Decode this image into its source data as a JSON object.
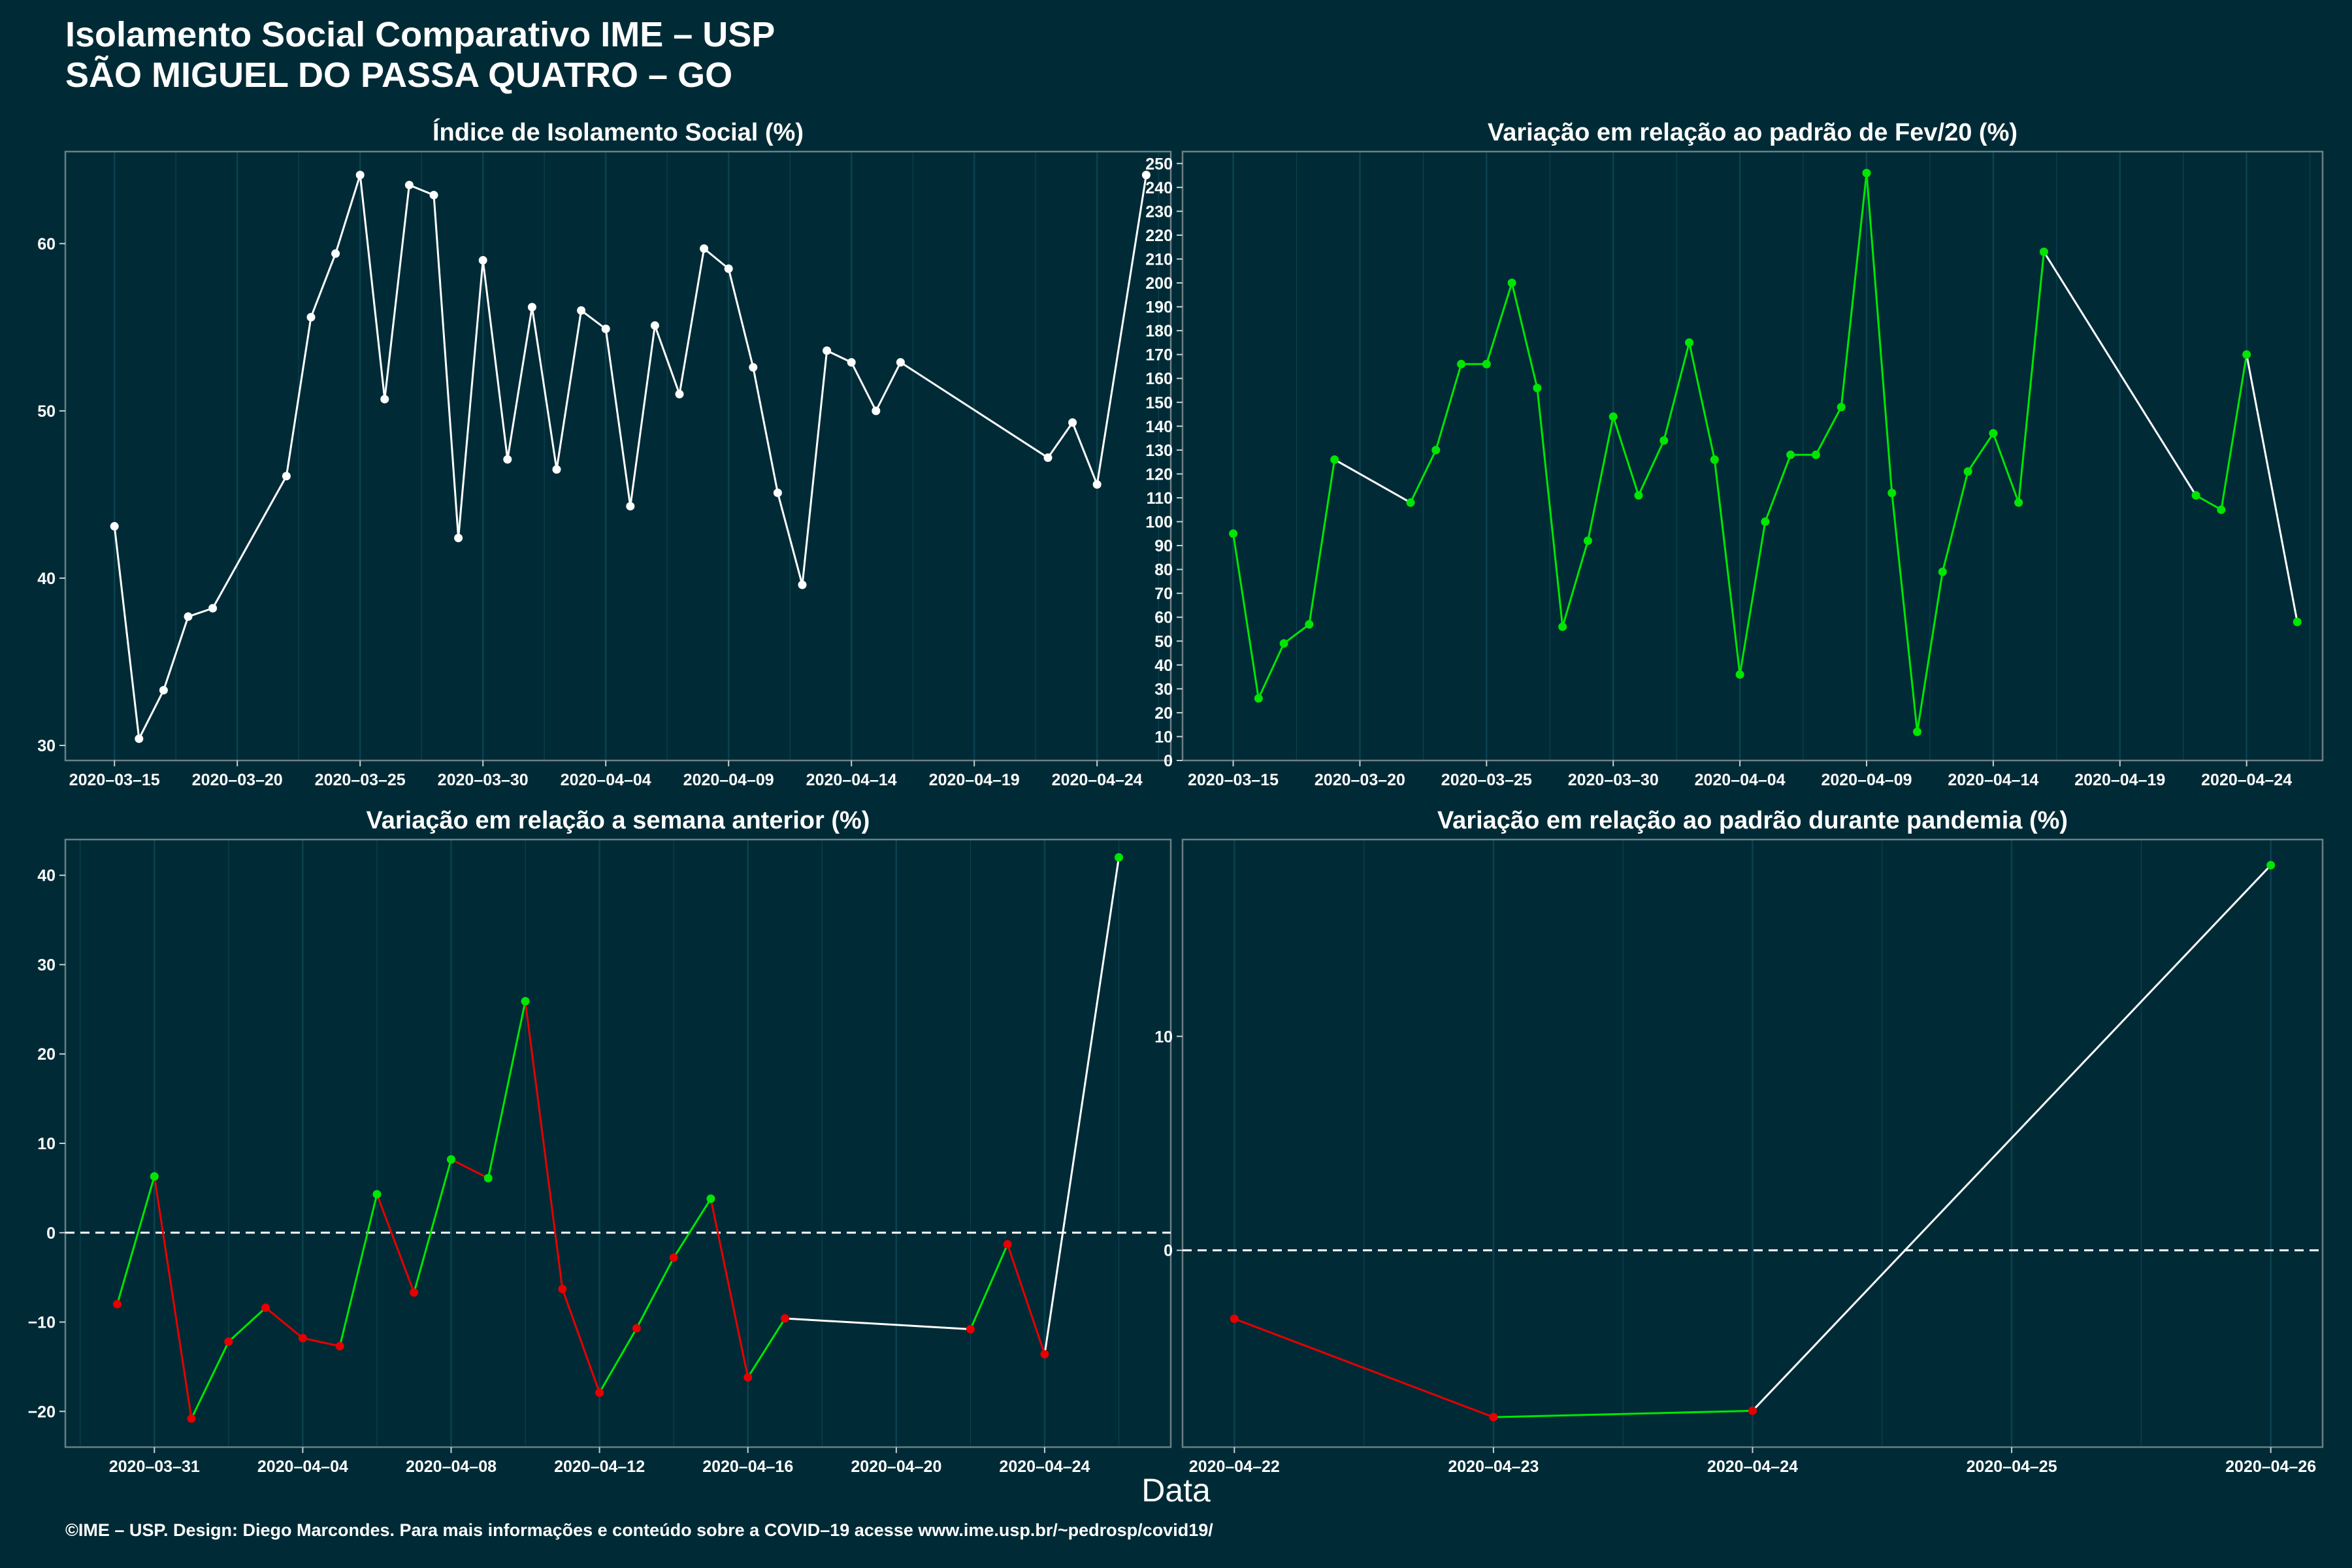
{
  "header": {
    "title": "Isolamento Social Comparativo IME – USP",
    "subtitle": "SÃO MIGUEL DO PASSA QUATRO – GO"
  },
  "footer": {
    "text": "©IME – USP. Design: Diego Marcondes. Para mais informações e conteúdo sobre a COVID–19 acesse www.ime.usp.br/~pedrosp/covid19/",
    "x_axis_title": "Data"
  },
  "colors": {
    "background": "#002b36",
    "panel_border": "#6b7f86",
    "grid": "#0c4150",
    "line_neutral": "#ffffff",
    "line_up": "#00e600",
    "line_down": "#e60000"
  },
  "chart_data": [
    {
      "type": "line",
      "title": "Índice de Isolamento Social (%)",
      "xlabel": "",
      "ylabel": "",
      "x_axis": "date",
      "xlim": [
        "2020-03-13",
        "2020-04-27"
      ],
      "xticks": [
        "2020-03-15",
        "2020-03-20",
        "2020-03-25",
        "2020-03-30",
        "2020-04-04",
        "2020-04-09",
        "2020-04-14",
        "2020-04-19",
        "2020-04-24"
      ],
      "ylim": [
        29.1,
        65.5
      ],
      "yticks": [
        30,
        40,
        50,
        60
      ],
      "color_mode": "white",
      "points": [
        {
          "x": "2020-03-15",
          "y": 43.1
        },
        {
          "x": "2020-03-16",
          "y": 30.4
        },
        {
          "x": "2020-03-17",
          "y": 33.3
        },
        {
          "x": "2020-03-18",
          "y": 37.7
        },
        {
          "x": "2020-03-19",
          "y": 38.2
        },
        {
          "x": "2020-03-22",
          "y": 46.1
        },
        {
          "x": "2020-03-23",
          "y": 55.6
        },
        {
          "x": "2020-03-24",
          "y": 59.4
        },
        {
          "x": "2020-03-25",
          "y": 64.1
        },
        {
          "x": "2020-03-26",
          "y": 50.7
        },
        {
          "x": "2020-03-27",
          "y": 63.5
        },
        {
          "x": "2020-03-28",
          "y": 62.9
        },
        {
          "x": "2020-03-29",
          "y": 42.4
        },
        {
          "x": "2020-03-30",
          "y": 59.0
        },
        {
          "x": "2020-03-31",
          "y": 47.1
        },
        {
          "x": "2020-04-01",
          "y": 56.2
        },
        {
          "x": "2020-04-02",
          "y": 46.5
        },
        {
          "x": "2020-04-03",
          "y": 56.0
        },
        {
          "x": "2020-04-04",
          "y": 54.9
        },
        {
          "x": "2020-04-05",
          "y": 44.3
        },
        {
          "x": "2020-04-06",
          "y": 55.1
        },
        {
          "x": "2020-04-07",
          "y": 51.0
        },
        {
          "x": "2020-04-08",
          "y": 59.7
        },
        {
          "x": "2020-04-09",
          "y": 58.5
        },
        {
          "x": "2020-04-10",
          "y": 52.6
        },
        {
          "x": "2020-04-11",
          "y": 45.1
        },
        {
          "x": "2020-04-12",
          "y": 39.6
        },
        {
          "x": "2020-04-13",
          "y": 53.6
        },
        {
          "x": "2020-04-14",
          "y": 52.9
        },
        {
          "x": "2020-04-15",
          "y": 50.0
        },
        {
          "x": "2020-04-16",
          "y": 52.9
        },
        {
          "x": "2020-04-22",
          "y": 47.2
        },
        {
          "x": "2020-04-23",
          "y": 49.3
        },
        {
          "x": "2020-04-24",
          "y": 45.6
        },
        {
          "x": "2020-04-26",
          "y": 64.1
        }
      ]
    },
    {
      "type": "line",
      "title": "Variação em relação ao padrão de Fev/20 (%)",
      "xlabel": "",
      "ylabel": "",
      "x_axis": "date",
      "xlim": [
        "2020-03-13",
        "2020-04-27"
      ],
      "xticks": [
        "2020-03-15",
        "2020-03-20",
        "2020-03-25",
        "2020-03-30",
        "2020-04-04",
        "2020-04-09",
        "2020-04-14",
        "2020-04-19",
        "2020-04-24"
      ],
      "ylim": [
        0,
        255
      ],
      "yticks": [
        0,
        10,
        20,
        30,
        40,
        50,
        60,
        70,
        80,
        90,
        100,
        110,
        120,
        130,
        140,
        150,
        160,
        170,
        180,
        190,
        200,
        210,
        220,
        230,
        240,
        250
      ],
      "color_mode": "green",
      "points": [
        {
          "x": "2020-03-15",
          "y": 95
        },
        {
          "x": "2020-03-16",
          "y": 26
        },
        {
          "x": "2020-03-17",
          "y": 49
        },
        {
          "x": "2020-03-18",
          "y": 57
        },
        {
          "x": "2020-03-19",
          "y": 126
        },
        {
          "x": "2020-03-22",
          "y": 108
        },
        {
          "x": "2020-03-23",
          "y": 130
        },
        {
          "x": "2020-03-24",
          "y": 166
        },
        {
          "x": "2020-03-25",
          "y": 166
        },
        {
          "x": "2020-03-26",
          "y": 200
        },
        {
          "x": "2020-03-27",
          "y": 156
        },
        {
          "x": "2020-03-28",
          "y": 56
        },
        {
          "x": "2020-03-29",
          "y": 92
        },
        {
          "x": "2020-03-30",
          "y": 144
        },
        {
          "x": "2020-03-31",
          "y": 111
        },
        {
          "x": "2020-04-01",
          "y": 134
        },
        {
          "x": "2020-04-02",
          "y": 175
        },
        {
          "x": "2020-04-03",
          "y": 126
        },
        {
          "x": "2020-04-04",
          "y": 36
        },
        {
          "x": "2020-04-05",
          "y": 100
        },
        {
          "x": "2020-04-06",
          "y": 128
        },
        {
          "x": "2020-04-07",
          "y": 128
        },
        {
          "x": "2020-04-08",
          "y": 148
        },
        {
          "x": "2020-04-09",
          "y": 246
        },
        {
          "x": "2020-04-10",
          "y": 112
        },
        {
          "x": "2020-04-11",
          "y": 12
        },
        {
          "x": "2020-04-12",
          "y": 79
        },
        {
          "x": "2020-04-13",
          "y": 121
        },
        {
          "x": "2020-04-14",
          "y": 137
        },
        {
          "x": "2020-04-15",
          "y": 108
        },
        {
          "x": "2020-04-16",
          "y": 213
        },
        {
          "x": "2020-04-22",
          "y": 111
        },
        {
          "x": "2020-04-23",
          "y": 105
        },
        {
          "x": "2020-04-24",
          "y": 170
        },
        {
          "x": "2020-04-26",
          "y": 58
        }
      ]
    },
    {
      "type": "line",
      "title": "Variação em relação a semana anterior (%)",
      "xlabel": "",
      "ylabel": "",
      "x_axis": "date",
      "xlim": [
        "2020-03-28.6",
        "2020-04-27.4"
      ],
      "xticks": [
        "2020-03-31",
        "2020-04-04",
        "2020-04-08",
        "2020-04-12",
        "2020-04-16",
        "2020-04-20",
        "2020-04-24"
      ],
      "ylim": [
        -24,
        44
      ],
      "yticks": [
        -20,
        -10,
        0,
        10,
        20,
        30,
        40
      ],
      "reference_line": 0,
      "color_mode": "sign",
      "points": [
        {
          "x": "2020-03-30",
          "y": -8.0
        },
        {
          "x": "2020-03-31",
          "y": 6.3
        },
        {
          "x": "2020-04-01",
          "y": -20.8
        },
        {
          "x": "2020-04-02",
          "y": -12.2
        },
        {
          "x": "2020-04-03",
          "y": -8.4
        },
        {
          "x": "2020-04-04",
          "y": -11.8
        },
        {
          "x": "2020-04-05",
          "y": -12.7
        },
        {
          "x": "2020-04-06",
          "y": 4.3
        },
        {
          "x": "2020-04-07",
          "y": -6.7
        },
        {
          "x": "2020-04-08",
          "y": 8.2
        },
        {
          "x": "2020-04-09",
          "y": 6.1
        },
        {
          "x": "2020-04-10",
          "y": 25.9
        },
        {
          "x": "2020-04-11",
          "y": -6.3
        },
        {
          "x": "2020-04-12",
          "y": -17.9
        },
        {
          "x": "2020-04-13",
          "y": -10.7
        },
        {
          "x": "2020-04-14",
          "y": -2.8
        },
        {
          "x": "2020-04-15",
          "y": 3.8
        },
        {
          "x": "2020-04-16",
          "y": -16.2
        },
        {
          "x": "2020-04-17",
          "y": -9.6
        },
        {
          "x": "2020-04-22",
          "y": -10.8
        },
        {
          "x": "2020-04-23",
          "y": -1.3
        },
        {
          "x": "2020-04-24",
          "y": -13.6
        },
        {
          "x": "2020-04-26",
          "y": 42.0
        }
      ]
    },
    {
      "type": "line",
      "title": "Variação em relação ao padrão durante pandemia (%)",
      "xlabel": "",
      "ylabel": "",
      "x_axis": "date",
      "xlim": [
        "2020-04-21.8",
        "2020-04-26.2"
      ],
      "xticks": [
        "2020-04-22",
        "2020-04-23",
        "2020-04-24",
        "2020-04-25",
        "2020-04-26"
      ],
      "ylim": [
        -9.2,
        19.2
      ],
      "yticks": [
        0,
        10
      ],
      "reference_line": 0,
      "color_mode": "sign",
      "points": [
        {
          "x": "2020-04-22",
          "y": -3.2
        },
        {
          "x": "2020-04-23",
          "y": -7.8
        },
        {
          "x": "2020-04-24",
          "y": -7.5
        },
        {
          "x": "2020-04-26",
          "y": 18.0
        }
      ]
    }
  ]
}
